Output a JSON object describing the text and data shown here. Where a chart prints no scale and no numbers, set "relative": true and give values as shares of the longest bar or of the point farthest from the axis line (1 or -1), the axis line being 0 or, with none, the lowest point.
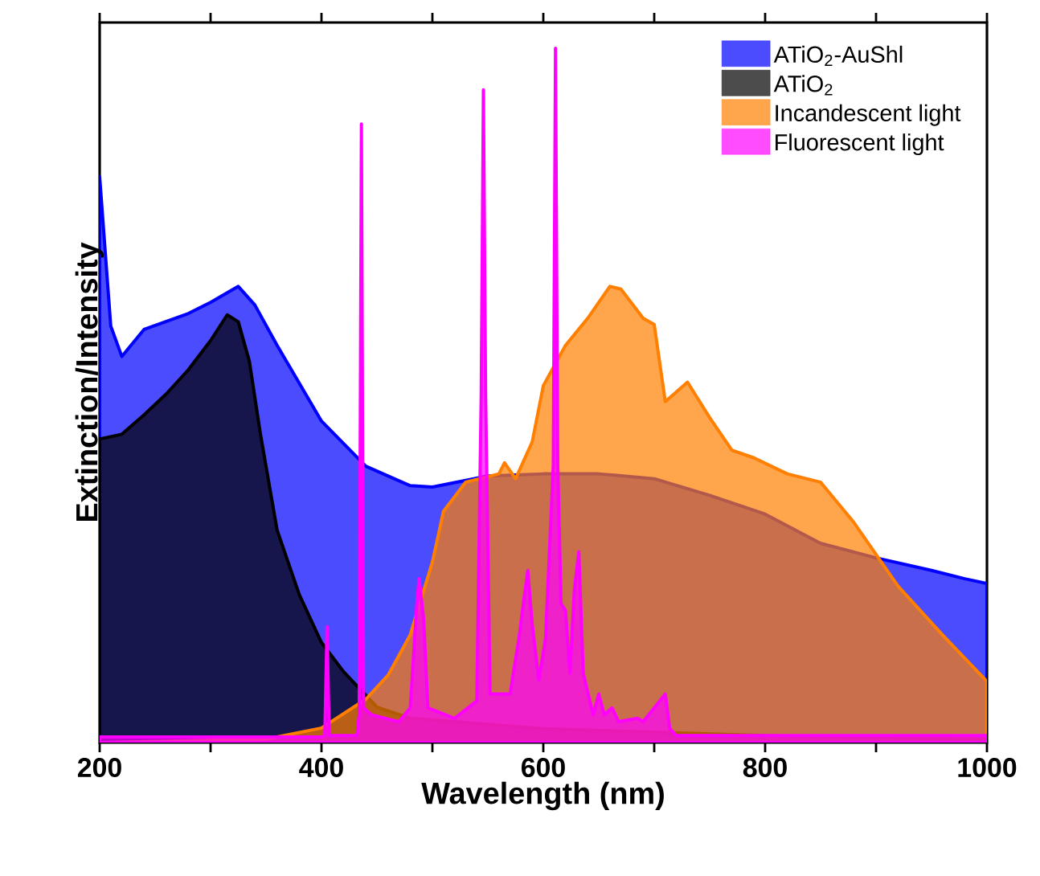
{
  "chart_data": {
    "type": "area",
    "relative": true,
    "xlabel": "Wavelength (nm)",
    "ylabel": "Extinction/Intensity",
    "xlim": [
      200,
      1000
    ],
    "xticks": [
      200,
      {
        "value": 300,
        "label": null
      },
      400,
      {
        "value": 500,
        "label": null
      },
      600,
      {
        "value": 700,
        "label": null
      },
      800,
      {
        "value": 900,
        "label": null
      },
      1000
    ],
    "legend": "top right",
    "series": [
      {
        "name": "ATiO$_{2}$-AuShl",
        "color": "#0000ff",
        "x": [
          200,
          210,
          220,
          240,
          280,
          300,
          325,
          340,
          360,
          400,
          440,
          480,
          500,
          550,
          600,
          650,
          700,
          750,
          800,
          850,
          900,
          950,
          980,
          1000
        ],
        "values": [
          0.815,
          0.6,
          0.556,
          0.595,
          0.618,
          0.634,
          0.657,
          0.63,
          0.572,
          0.463,
          0.398,
          0.37,
          0.368,
          0.384,
          0.387,
          0.387,
          0.38,
          0.356,
          0.329,
          0.287,
          0.266,
          0.248,
          0.236,
          0.229
        ]
      },
      {
        "name": "ATiO$_{2}$",
        "color": "#000000",
        "x": [
          200,
          220,
          240,
          260,
          280,
          300,
          315,
          325,
          335,
          345,
          360,
          380,
          400,
          420,
          450,
          480,
          600,
          800,
          1000
        ],
        "values": [
          0.437,
          0.444,
          0.472,
          0.502,
          0.537,
          0.579,
          0.616,
          0.606,
          0.549,
          0.444,
          0.306,
          0.213,
          0.144,
          0.102,
          0.051,
          0.035,
          0.02,
          0.01,
          0.005
        ]
      },
      {
        "name": "Incandescent light",
        "color": "#ff7f00",
        "x": [
          200,
          350,
          400,
          440,
          460,
          480,
          500,
          510,
          530,
          560,
          565,
          575,
          590,
          600,
          620,
          640,
          660,
          670,
          690,
          700,
          710,
          730,
          750,
          770,
          790,
          820,
          850,
          880,
          920,
          960,
          1000
        ],
        "values": [
          0.0,
          0.005,
          0.021,
          0.0625,
          0.097,
          0.155,
          0.26,
          0.333,
          0.375,
          0.387,
          0.403,
          0.38,
          0.433,
          0.514,
          0.572,
          0.611,
          0.657,
          0.653,
          0.611,
          0.602,
          0.491,
          0.519,
          0.468,
          0.421,
          0.41,
          0.387,
          0.375,
          0.317,
          0.225,
          0.155,
          0.088
        ]
      },
      {
        "name": "Fluorescent light",
        "color": "#ff00ff",
        "x": [
          200,
          400,
          403,
          405,
          407,
          432,
          434,
          436,
          438,
          445,
          470,
          480,
          486,
          488,
          492,
          496,
          520,
          540,
          544,
          546,
          548,
          552,
          570,
          578,
          582,
          586,
          590,
          596,
          602,
          609,
          611,
          613,
          616,
          620,
          624,
          628,
          632,
          636,
          645,
          650,
          655,
          662,
          668,
          685,
          690,
          705,
          710,
          714,
          720,
          1000
        ],
        "values": [
          0.008,
          0.008,
          0.01,
          0.167,
          0.01,
          0.01,
          0.04,
          0.891,
          0.05,
          0.04,
          0.03,
          0.05,
          0.2,
          0.236,
          0.18,
          0.05,
          0.035,
          0.06,
          0.5,
          0.94,
          0.5,
          0.07,
          0.07,
          0.15,
          0.2,
          0.248,
          0.17,
          0.09,
          0.15,
          0.4,
          1.0,
          0.4,
          0.2,
          0.19,
          0.1,
          0.22,
          0.275,
          0.1,
          0.04,
          0.07,
          0.04,
          0.05,
          0.03,
          0.035,
          0.03,
          0.06,
          0.07,
          0.02,
          0.01,
          0.01
        ]
      }
    ]
  }
}
